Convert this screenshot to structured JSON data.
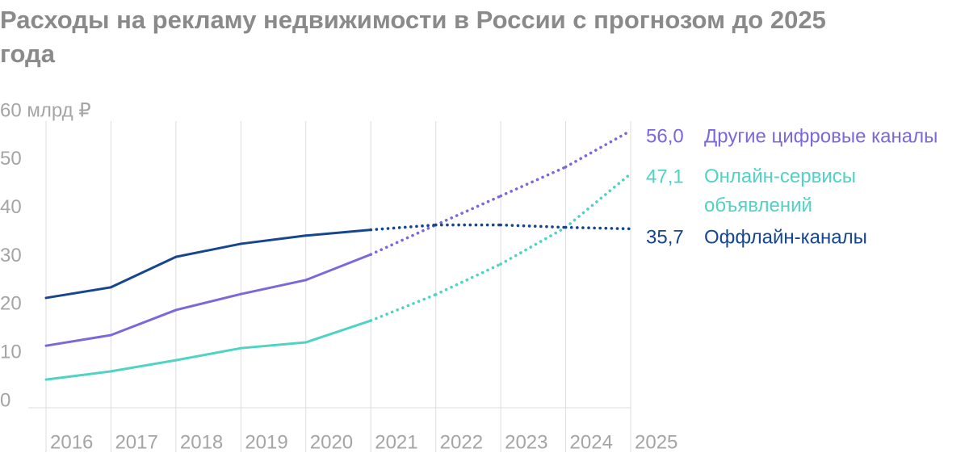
{
  "chart_data": {
    "type": "line",
    "title": "Расходы на рекламу недвижимости в России с прогнозом до 2025 года",
    "x": [
      2016,
      2017,
      2018,
      2019,
      2020,
      2021,
      2022,
      2023,
      2024,
      2025
    ],
    "xlim": [
      2016,
      2025
    ],
    "ylim": [
      0,
      60
    ],
    "yticks": [
      0,
      10,
      20,
      30,
      40,
      50,
      {
        "value": 60,
        "label": "60 млрд ₽"
      }
    ],
    "forecast_from": 2021,
    "grid": true,
    "series": [
      {
        "name": "Другие цифровые каналы",
        "color": "#7b68dc",
        "values": [
          11.5,
          13.7,
          18.9,
          22.2,
          25.1,
          30.4,
          36.5,
          42.5,
          48.5,
          56.0
        ],
        "value_labels": [
          null,
          null,
          null,
          null,
          null,
          null,
          null,
          null,
          null,
          "56,0"
        ]
      },
      {
        "name": "Онлайн-сервисы объявлений",
        "color": "#4fd3c4",
        "values": [
          4.5,
          6.2,
          8.5,
          11.0,
          12.2,
          16.7,
          22.1,
          28.4,
          36.0,
          47.1
        ],
        "value_labels": [
          null,
          null,
          null,
          null,
          null,
          null,
          null,
          null,
          null,
          "47,1"
        ]
      },
      {
        "name": "Оффлайн-каналы",
        "color": "#16468f",
        "values": [
          21.4,
          23.6,
          29.9,
          32.6,
          34.3,
          35.5,
          36.5,
          36.5,
          36.0,
          35.7
        ],
        "value_labels": [
          null,
          null,
          null,
          null,
          null,
          null,
          null,
          null,
          null,
          "35,7"
        ]
      }
    ]
  }
}
